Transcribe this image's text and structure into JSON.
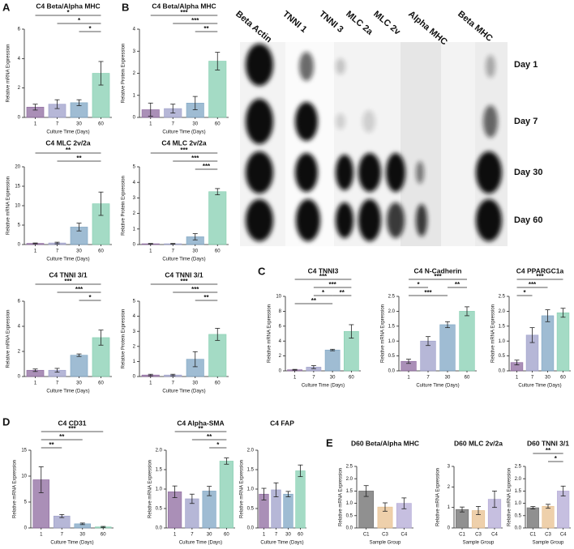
{
  "panels": [
    "A",
    "B",
    "C",
    "D",
    "E"
  ],
  "blot": {
    "lanes": [
      "Beta Actin",
      "TNNI 1",
      "TNNI 3",
      "MLC 2a",
      "MLC 2v",
      "Alpha MHC",
      "Beta MHC"
    ],
    "days": [
      "Day 1",
      "Day 7",
      "Day 30",
      "Day 60"
    ]
  },
  "chart_data": [
    {
      "type": "bar",
      "title": "C4 Beta/Alpha MHC",
      "y_label": "Relative mRNA Expression",
      "x_label": "Culture Time (Days)",
      "categories": [
        "1",
        "7",
        "30",
        "60"
      ],
      "values": [
        0.7,
        0.9,
        1.0,
        3.0
      ],
      "errors": [
        0.2,
        0.3,
        0.2,
        0.8
      ],
      "colors": [
        "#8e6a9f",
        "#9d9fc9",
        "#7fa6c4",
        "#86cfb1"
      ],
      "ylim": [
        0,
        6
      ],
      "yticks": [
        0,
        2,
        4,
        6
      ],
      "significance": [
        {
          "from": 0,
          "to": 3,
          "label": "*"
        },
        {
          "from": 1,
          "to": 3,
          "label": "*"
        },
        {
          "from": 2,
          "to": 3,
          "label": "*"
        }
      ]
    },
    {
      "type": "bar",
      "title": "C4 Beta/Alpha MHC",
      "y_label": "Relative Protein Expression",
      "x_label": "Culture Time (Days)",
      "categories": [
        "1",
        "7",
        "30",
        "60"
      ],
      "values": [
        0.35,
        0.4,
        0.65,
        2.55
      ],
      "errors": [
        0.3,
        0.2,
        0.3,
        0.4
      ],
      "colors": [
        "#8e6a9f",
        "#9d9fc9",
        "#7fa6c4",
        "#86cfb1"
      ],
      "ylim": [
        0,
        4
      ],
      "yticks": [
        0,
        1,
        2,
        3,
        4
      ],
      "significance": [
        {
          "from": 0,
          "to": 3,
          "label": "***"
        },
        {
          "from": 1,
          "to": 3,
          "label": "***"
        },
        {
          "from": 2,
          "to": 3,
          "label": "**"
        }
      ]
    },
    {
      "type": "bar",
      "title": "C4 MLC 2v/2a",
      "y_label": "Relative mRNA Expression",
      "x_label": "Culture Time (Days)",
      "categories": [
        "1",
        "7",
        "30",
        "60"
      ],
      "values": [
        0.3,
        0.4,
        4.5,
        10.5
      ],
      "errors": [
        0.1,
        0.2,
        1.0,
        3.0
      ],
      "colors": [
        "#8e6a9f",
        "#9d9fc9",
        "#7fa6c4",
        "#86cfb1"
      ],
      "ylim": [
        0,
        20
      ],
      "yticks": [
        0,
        5,
        10,
        15,
        20
      ],
      "significance": [
        {
          "from": 0,
          "to": 3,
          "label": "**"
        },
        {
          "from": 1,
          "to": 3,
          "label": "**"
        }
      ]
    },
    {
      "type": "bar",
      "title": "C4 MLC 2v/2a",
      "y_label": "Relative Protein Expression",
      "x_label": "Culture Time (Days)",
      "categories": [
        "1",
        "7",
        "30",
        "60"
      ],
      "values": [
        0.05,
        0.05,
        0.5,
        3.4
      ],
      "errors": [
        0.02,
        0.02,
        0.2,
        0.2
      ],
      "colors": [
        "#8e6a9f",
        "#9d9fc9",
        "#7fa6c4",
        "#86cfb1"
      ],
      "ylim": [
        0,
        5
      ],
      "yticks": [
        0,
        1,
        2,
        3,
        4,
        5
      ],
      "significance": [
        {
          "from": 0,
          "to": 3,
          "label": "***"
        },
        {
          "from": 1,
          "to": 3,
          "label": "***"
        },
        {
          "from": 2,
          "to": 3,
          "label": "***"
        }
      ]
    },
    {
      "type": "bar",
      "title": "C4 TNNI 3/1",
      "y_label": "Relative mRNA Expression",
      "x_label": "Culture Time (Days)",
      "categories": [
        "1",
        "7",
        "30",
        "60"
      ],
      "values": [
        0.5,
        0.5,
        1.7,
        3.1
      ],
      "errors": [
        0.1,
        0.15,
        0.1,
        0.6
      ],
      "colors": [
        "#8e6a9f",
        "#9d9fc9",
        "#7fa6c4",
        "#86cfb1"
      ],
      "ylim": [
        0,
        6
      ],
      "yticks": [
        0,
        2,
        4,
        6
      ],
      "significance": [
        {
          "from": 0,
          "to": 3,
          "label": "***"
        },
        {
          "from": 1,
          "to": 3,
          "label": "***"
        },
        {
          "from": 2,
          "to": 3,
          "label": "*"
        }
      ]
    },
    {
      "type": "bar",
      "title": "C4 TNNI 3/1",
      "y_label": "Relative Protein Expression",
      "x_label": "Culture Time (Days)",
      "categories": [
        "1",
        "7",
        "30",
        "60"
      ],
      "values": [
        0.1,
        0.1,
        1.15,
        2.8
      ],
      "errors": [
        0.05,
        0.05,
        0.5,
        0.4
      ],
      "colors": [
        "#8e6a9f",
        "#9d9fc9",
        "#7fa6c4",
        "#86cfb1"
      ],
      "ylim": [
        0,
        5
      ],
      "yticks": [
        0,
        1,
        2,
        3,
        4,
        5
      ],
      "significance": [
        {
          "from": 0,
          "to": 3,
          "label": "***"
        },
        {
          "from": 1,
          "to": 3,
          "label": "***"
        },
        {
          "from": 2,
          "to": 3,
          "label": "**"
        }
      ]
    },
    {
      "type": "bar",
      "title": "C4 TNNI3",
      "y_label": "Relative mRNA Expression",
      "x_label": "Culture Time (Days)",
      "categories": [
        "1",
        "7",
        "30",
        "60"
      ],
      "values": [
        0.15,
        0.5,
        2.8,
        5.3
      ],
      "errors": [
        0.05,
        0.2,
        0.1,
        0.9
      ],
      "colors": [
        "#8e6a9f",
        "#9d9fc9",
        "#7fa6c4",
        "#86cfb1"
      ],
      "ylim": [
        0,
        10
      ],
      "yticks": [
        0,
        2,
        4,
        6,
        8,
        10
      ],
      "significance": [
        {
          "from": 0,
          "to": 3,
          "label": "***"
        },
        {
          "from": 1,
          "to": 3,
          "label": "***"
        },
        {
          "from": 1,
          "to": 2,
          "label": "*"
        },
        {
          "from": 2,
          "to": 3,
          "label": "**"
        },
        {
          "from": 0,
          "to": 2,
          "label": "**"
        }
      ]
    },
    {
      "type": "bar",
      "title": "C4 N-Cadherin",
      "y_label": "Relative mRNA Expression",
      "x_label": "Culture Time (Days)",
      "categories": [
        "1",
        "7",
        "30",
        "60"
      ],
      "values": [
        0.32,
        1.0,
        1.55,
        2.0
      ],
      "errors": [
        0.07,
        0.15,
        0.1,
        0.15
      ],
      "colors": [
        "#8e6a9f",
        "#9d9fc9",
        "#7fa6c4",
        "#86cfb1"
      ],
      "ylim": [
        0,
        2.5
      ],
      "yticks": [
        {
          "value": 0,
          "label": "0.0"
        },
        0.5,
        {
          "value": 1,
          "label": "1.0"
        },
        1.5,
        {
          "value": 2,
          "label": "2.0"
        },
        2.5
      ],
      "significance": [
        {
          "from": 0,
          "to": 3,
          "label": "***"
        },
        {
          "from": 0,
          "to": 1,
          "label": "*"
        },
        {
          "from": 2,
          "to": 3,
          "label": "**"
        },
        {
          "from": 0,
          "to": 2,
          "label": "***"
        }
      ]
    },
    {
      "type": "bar",
      "title": "C4 PPARGC1a",
      "y_label": "Relative mRNA Expression",
      "x_label": "Culture Time (Days)",
      "categories": [
        "1",
        "7",
        "30",
        "60"
      ],
      "values": [
        0.28,
        1.2,
        1.85,
        1.95
      ],
      "errors": [
        0.08,
        0.25,
        0.2,
        0.15
      ],
      "colors": [
        "#8e6a9f",
        "#9d9fc9",
        "#7fa6c4",
        "#86cfb1"
      ],
      "ylim": [
        0,
        2.5
      ],
      "yticks": [
        {
          "value": 0,
          "label": "0.0"
        },
        0.5,
        {
          "value": 1,
          "label": "1.0"
        },
        1.5,
        {
          "value": 2,
          "label": "2.0"
        },
        2.5
      ],
      "significance": [
        {
          "from": 0,
          "to": 3,
          "label": "***"
        },
        {
          "from": 0,
          "to": 2,
          "label": "***"
        },
        {
          "from": 0,
          "to": 1,
          "label": "*"
        }
      ]
    },
    {
      "type": "bar",
      "title": "C4 CD31",
      "y_label": "Relative mRNA Expression",
      "x_label": "Culture Time (Days)",
      "categories": [
        "1",
        "7",
        "30",
        "60"
      ],
      "values": [
        9.3,
        2.3,
        0.8,
        0.2
      ],
      "errors": [
        2.5,
        0.3,
        0.15,
        0.1
      ],
      "colors": [
        "#8e6a9f",
        "#9d9fc9",
        "#7fa6c4",
        "#86cfb1"
      ],
      "ylim": [
        0,
        15
      ],
      "yticks": [
        0,
        5,
        10,
        15
      ],
      "significance": [
        {
          "from": 0,
          "to": 3,
          "label": "***"
        },
        {
          "from": 0,
          "to": 2,
          "label": "**"
        },
        {
          "from": 0,
          "to": 1,
          "label": "**"
        }
      ]
    },
    {
      "type": "bar",
      "title": "C4 Alpha-SMA",
      "y_label": "Relative mRNA Expression",
      "x_label": "Culture Time (Days)",
      "categories": [
        "1",
        "7",
        "30",
        "60"
      ],
      "values": [
        0.93,
        0.75,
        0.95,
        1.72
      ],
      "errors": [
        0.15,
        0.12,
        0.12,
        0.08
      ],
      "colors": [
        "#8e6a9f",
        "#9d9fc9",
        "#7fa6c4",
        "#86cfb1"
      ],
      "ylim": [
        0,
        2
      ],
      "yticks": [
        {
          "value": 0,
          "label": "0.0"
        },
        0.5,
        {
          "value": 1,
          "label": "1.0"
        },
        1.5,
        {
          "value": 2,
          "label": "2.0"
        }
      ],
      "significance": [
        {
          "from": 0,
          "to": 3,
          "label": "**"
        },
        {
          "from": 1,
          "to": 3,
          "label": "**"
        },
        {
          "from": 2,
          "to": 3,
          "label": "*"
        }
      ]
    },
    {
      "type": "bar",
      "title": "C4 FAP",
      "y_label": "Relative mRNA Expression",
      "x_label": "Culture Time (Days)",
      "categories": [
        "1",
        "7",
        "30",
        "60"
      ],
      "values": [
        0.87,
        0.98,
        0.87,
        1.47
      ],
      "errors": [
        0.15,
        0.18,
        0.07,
        0.15
      ],
      "colors": [
        "#8e6a9f",
        "#9d9fc9",
        "#7fa6c4",
        "#86cfb1"
      ],
      "ylim": [
        0,
        2
      ],
      "yticks": [
        {
          "value": 0,
          "label": "0.0"
        },
        0.5,
        {
          "value": 1,
          "label": "1.0"
        },
        1.5,
        {
          "value": 2,
          "label": "2.0"
        }
      ],
      "significance": []
    },
    {
      "type": "bar",
      "title": "D60 Beta/Alpha MHC",
      "y_label": "Relative mRNA Expression",
      "x_label": "Sample Group",
      "categories": [
        "C1",
        "C3",
        "C4"
      ],
      "values": [
        1.5,
        0.85,
        1.0
      ],
      "errors": [
        0.22,
        0.17,
        0.22
      ],
      "colors": [
        "#6b6b6b",
        "#e8c08f",
        "#b3a9d6"
      ],
      "ylim": [
        0,
        2.5
      ],
      "yticks": [
        {
          "value": 0,
          "label": "0.0"
        },
        0.5,
        {
          "value": 1,
          "label": "1.0"
        },
        1.5,
        {
          "value": 2,
          "label": "2.0"
        },
        2.5
      ],
      "significance": []
    },
    {
      "type": "bar",
      "title": "D60 MLC 2v/2a",
      "y_label": "Relative mRNA Expression",
      "x_label": "Sample Group",
      "categories": [
        "C1",
        "C3",
        "C4"
      ],
      "values": [
        0.9,
        0.85,
        1.4
      ],
      "errors": [
        0.12,
        0.2,
        0.4
      ],
      "colors": [
        "#6b6b6b",
        "#e8c08f",
        "#b3a9d6"
      ],
      "ylim": [
        0,
        3
      ],
      "yticks": [
        0,
        1,
        2,
        3
      ],
      "significance": []
    },
    {
      "type": "bar",
      "title": "D60 TNNI 3/1",
      "y_label": "Relative mRNA Expression",
      "x_label": "Sample Group",
      "categories": [
        "C1",
        "C3",
        "C4"
      ],
      "values": [
        0.82,
        0.88,
        1.5
      ],
      "errors": [
        0.05,
        0.08,
        0.2
      ],
      "colors": [
        "#6b6b6b",
        "#e8c08f",
        "#b3a9d6"
      ],
      "ylim": [
        0,
        2.5
      ],
      "yticks": [
        {
          "value": 0,
          "label": "0.0"
        },
        0.5,
        {
          "value": 1,
          "label": "1.0"
        },
        1.5,
        {
          "value": 2,
          "label": "2.0"
        },
        2.5
      ],
      "significance": [
        {
          "from": 0,
          "to": 2,
          "label": "**"
        },
        {
          "from": 1,
          "to": 2,
          "label": "*"
        }
      ]
    }
  ]
}
